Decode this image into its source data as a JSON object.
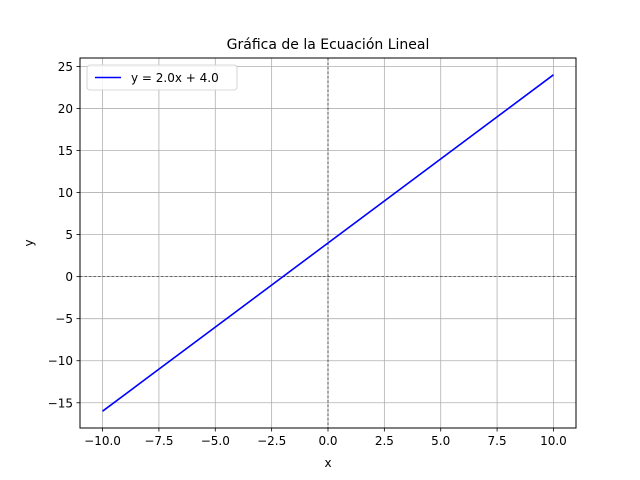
{
  "chart_data": {
    "type": "line",
    "title": "Gráfica de la Ecuación Lineal",
    "xlabel": "x",
    "ylabel": "y",
    "xlim": [
      -11.0,
      11.0
    ],
    "ylim": [
      -18.0,
      26.0
    ],
    "xticks": [
      -10.0,
      -7.5,
      -5.0,
      -2.5,
      0.0,
      2.5,
      5.0,
      7.5,
      10.0
    ],
    "xtick_labels": [
      "−10.0",
      "−7.5",
      "−5.0",
      "−2.5",
      "0.0",
      "2.5",
      "5.0",
      "7.5",
      "10.0"
    ],
    "yticks": [
      -15,
      -10,
      -5,
      0,
      5,
      10,
      15,
      20,
      25
    ],
    "ytick_labels": [
      "−15",
      "−10",
      "−5",
      "0",
      "5",
      "10",
      "15",
      "20",
      "25"
    ],
    "grid": true,
    "reference_lines": {
      "x": 0,
      "y": 0,
      "style": "dashed",
      "color": "#000000"
    },
    "legend_position": "top-left",
    "series": [
      {
        "name": "y = 2.0x + 4.0",
        "color": "#0000ff",
        "x": [
          -10.0,
          10.0
        ],
        "y": [
          -16.0,
          24.0
        ]
      }
    ]
  }
}
